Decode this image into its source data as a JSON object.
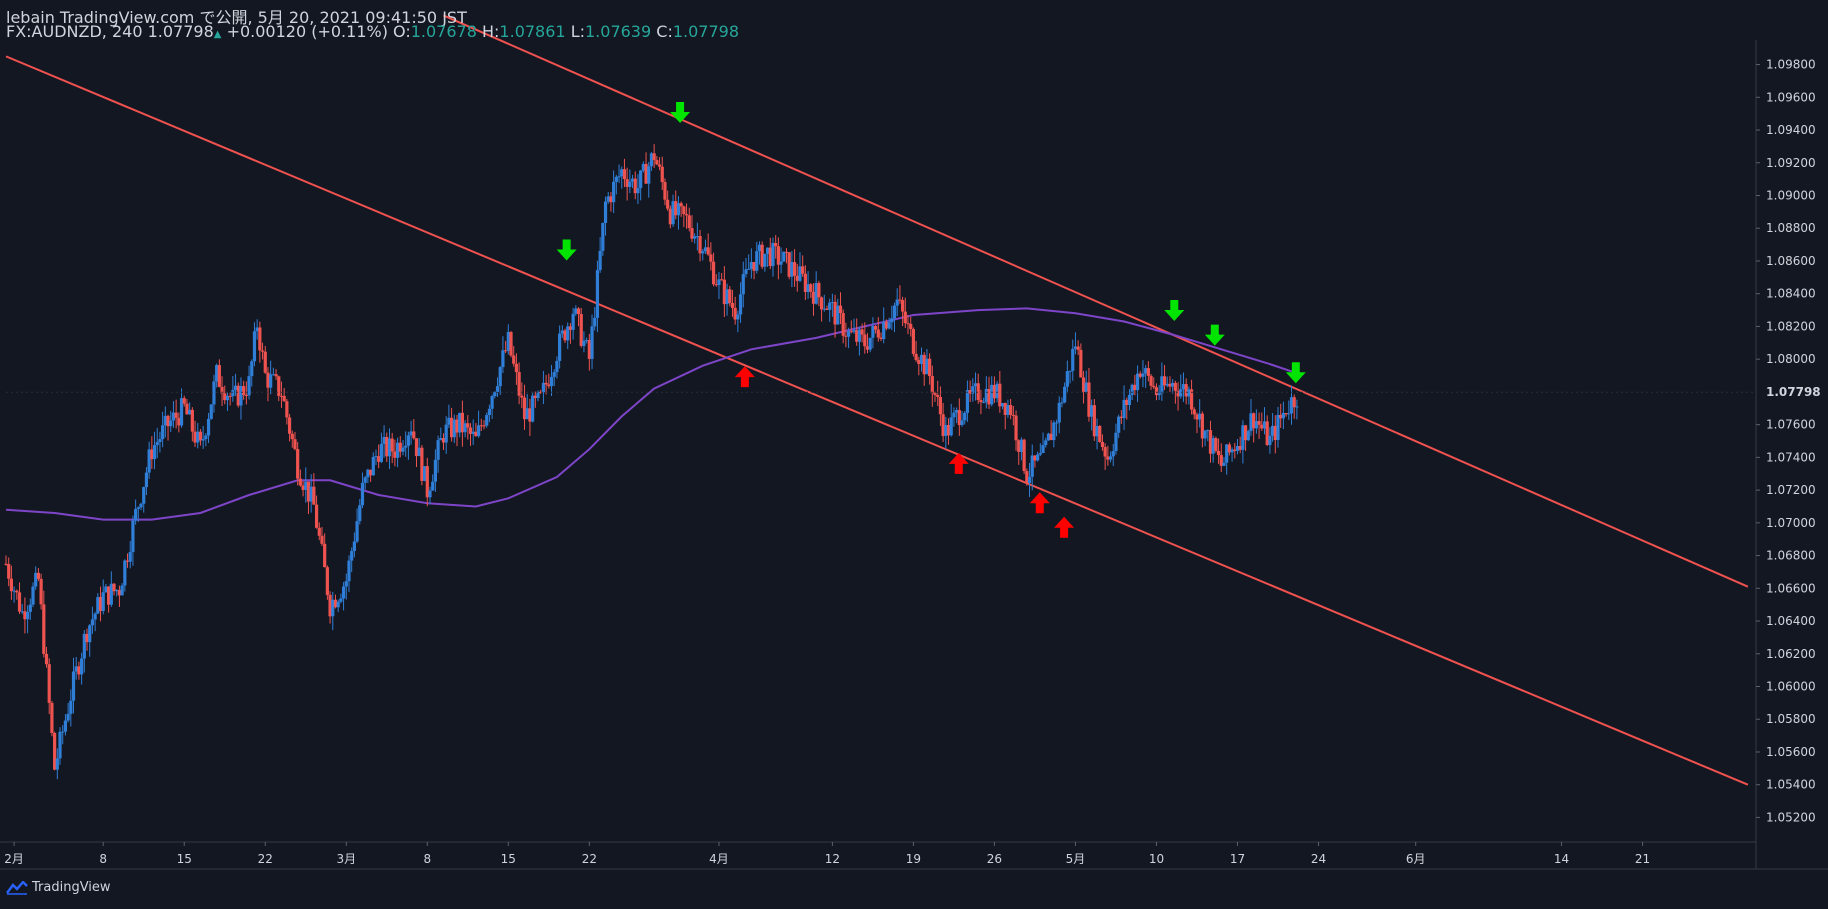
{
  "header": {
    "line1": "lebain TradingView.com で公開, 5月 20, 2021 09:41:50 JST",
    "symbol": "FX:AUDNZD, 240",
    "last": "1.07798",
    "change_arrow": "▲",
    "change": "+0.00120 (+0.11%)",
    "o_label": "O:",
    "o": "1.07678",
    "h_label": "H:",
    "h": "1.07861",
    "l_label": "L:",
    "l": "1.07639",
    "c_label": "C:",
    "c": "1.07798"
  },
  "brand": {
    "name": "TradingView",
    "icon": "tradingview-logo-icon"
  },
  "colors": {
    "background": "#131722",
    "up": "#2f7fd8",
    "down": "#ef5350",
    "trendline": "#f0524f",
    "ma": "#7e45c9",
    "green_marker": "#00e400",
    "red_marker": "#ff0000",
    "axis_text": "#d1d4dc"
  },
  "chart_data": {
    "type": "candlestick",
    "symbol": "FX:AUDNZD",
    "timeframe": "240",
    "ylim": [
      1.0505,
      1.0995
    ],
    "y_ticks": [
      "1.09800",
      "1.09600",
      "1.09400",
      "1.09200",
      "1.09000",
      "1.08800",
      "1.08600",
      "1.08400",
      "1.08200",
      "1.08000",
      "1.07798",
      "1.07600",
      "1.07400",
      "1.07200",
      "1.07000",
      "1.06800",
      "1.06600",
      "1.06400",
      "1.06200",
      "1.06000",
      "1.05800",
      "1.05600",
      "1.05400",
      "1.05200"
    ],
    "current_price": "1.07798",
    "x_axis": {
      "day_range": [
        0,
        108
      ],
      "ticks": [
        {
          "day": 0.5,
          "label": "2月"
        },
        {
          "day": 6,
          "label": "8"
        },
        {
          "day": 11,
          "label": "15"
        },
        {
          "day": 16,
          "label": "22"
        },
        {
          "day": 21,
          "label": "3月"
        },
        {
          "day": 26,
          "label": "8"
        },
        {
          "day": 31,
          "label": "15"
        },
        {
          "day": 36,
          "label": "22"
        },
        {
          "day": 44,
          "label": "4月"
        },
        {
          "day": 51,
          "label": "12"
        },
        {
          "day": 56,
          "label": "19"
        },
        {
          "day": 61,
          "label": "26"
        },
        {
          "day": 66,
          "label": "5月"
        },
        {
          "day": 71,
          "label": "10"
        },
        {
          "day": 76,
          "label": "17"
        },
        {
          "day": 81,
          "label": "24"
        },
        {
          "day": 87,
          "label": "6月"
        },
        {
          "day": 96,
          "label": "14"
        },
        {
          "day": 101,
          "label": "21"
        }
      ]
    },
    "price_path": [
      [
        0,
        1.0675
      ],
      [
        1,
        1.0645
      ],
      [
        2,
        1.0665
      ],
      [
        3,
        1.055
      ],
      [
        4,
        1.0595
      ],
      [
        5,
        1.0635
      ],
      [
        6,
        1.0655
      ],
      [
        7,
        1.066
      ],
      [
        8,
        1.0705
      ],
      [
        9,
        1.0745
      ],
      [
        10,
        1.076
      ],
      [
        11,
        1.077
      ],
      [
        12,
        1.0745
      ],
      [
        13,
        1.079
      ],
      [
        14,
        1.0775
      ],
      [
        15,
        1.0785
      ],
      [
        15.5,
        1.0822
      ],
      [
        16,
        1.079
      ],
      [
        17,
        1.078
      ],
      [
        18,
        1.0735
      ],
      [
        19,
        1.071
      ],
      [
        20,
        1.065
      ],
      [
        21,
        1.0665
      ],
      [
        22,
        1.072
      ],
      [
        23,
        1.0745
      ],
      [
        24,
        1.0745
      ],
      [
        25,
        1.076
      ],
      [
        26,
        1.072
      ],
      [
        27,
        1.0755
      ],
      [
        28,
        1.076
      ],
      [
        29,
        1.075
      ],
      [
        30,
        1.078
      ],
      [
        31,
        1.081
      ],
      [
        32,
        1.0765
      ],
      [
        33,
        1.0775
      ],
      [
        34,
        1.0805
      ],
      [
        35,
        1.083
      ],
      [
        36,
        1.08
      ],
      [
        37,
        1.0895
      ],
      [
        38,
        1.0915
      ],
      [
        39,
        1.0905
      ],
      [
        40,
        1.0925
      ],
      [
        41,
        1.089
      ],
      [
        42,
        1.0885
      ],
      [
        43,
        1.087
      ],
      [
        44,
        1.0845
      ],
      [
        45,
        1.083
      ],
      [
        46,
        1.086
      ],
      [
        47,
        1.0865
      ],
      [
        48,
        1.086
      ],
      [
        49,
        1.085
      ],
      [
        50,
        1.084
      ],
      [
        51,
        1.083
      ],
      [
        52,
        1.0815
      ],
      [
        53,
        1.081
      ],
      [
        54,
        1.082
      ],
      [
        55,
        1.0835
      ],
      [
        56,
        1.081
      ],
      [
        57,
        1.079
      ],
      [
        58,
        1.0755
      ],
      [
        59,
        1.077
      ],
      [
        60,
        1.078
      ],
      [
        61,
        1.078
      ],
      [
        62,
        1.077
      ],
      [
        63,
        1.073
      ],
      [
        64,
        1.074
      ],
      [
        65,
        1.077
      ],
      [
        66,
        1.081
      ],
      [
        67,
        1.0765
      ],
      [
        68,
        1.074
      ],
      [
        69,
        1.077
      ],
      [
        70,
        1.0795
      ],
      [
        71,
        1.078
      ],
      [
        72,
        1.0785
      ],
      [
        73,
        1.078
      ],
      [
        74,
        1.0755
      ],
      [
        75,
        1.0735
      ],
      [
        76,
        1.075
      ],
      [
        77,
        1.0765
      ],
      [
        78,
        1.075
      ],
      [
        79,
        1.077
      ],
      [
        79.8,
        1.078
      ]
    ],
    "moving_average": [
      [
        0,
        1.0708
      ],
      [
        3,
        1.0706
      ],
      [
        6,
        1.0702
      ],
      [
        9,
        1.0702
      ],
      [
        12,
        1.0706
      ],
      [
        15,
        1.0717
      ],
      [
        18,
        1.0726
      ],
      [
        20,
        1.0726
      ],
      [
        23,
        1.0717
      ],
      [
        26,
        1.0712
      ],
      [
        29,
        1.071
      ],
      [
        31,
        1.0715
      ],
      [
        34,
        1.0728
      ],
      [
        36,
        1.0745
      ],
      [
        38,
        1.0765
      ],
      [
        40,
        1.0782
      ],
      [
        43,
        1.0796
      ],
      [
        46,
        1.0806
      ],
      [
        50,
        1.0813
      ],
      [
        53,
        1.082
      ],
      [
        56,
        1.0827
      ],
      [
        60,
        1.083
      ],
      [
        63,
        1.0831
      ],
      [
        66,
        1.0828
      ],
      [
        69,
        1.0823
      ],
      [
        72,
        1.0815
      ],
      [
        75,
        1.0806
      ],
      [
        78,
        1.0797
      ],
      [
        79.5,
        1.0792
      ]
    ],
    "trendlines": [
      {
        "name": "channel-upper",
        "from": [
          27,
          1.101
        ],
        "to": [
          107.5,
          1.0661
        ]
      },
      {
        "name": "channel-lower",
        "from": [
          0,
          1.0985
        ],
        "to": [
          107.5,
          1.054
        ]
      }
    ],
    "markers": [
      {
        "type": "sell",
        "color": "green",
        "day": 41.6,
        "price": 1.0951
      },
      {
        "type": "sell",
        "color": "green",
        "day": 34.6,
        "price": 1.0867
      },
      {
        "type": "sell",
        "color": "green",
        "day": 72.1,
        "price": 1.083
      },
      {
        "type": "sell",
        "color": "green",
        "day": 74.6,
        "price": 1.0815
      },
      {
        "type": "sell",
        "color": "green",
        "day": 79.6,
        "price": 1.0792
      },
      {
        "type": "buy",
        "color": "red",
        "day": 45.6,
        "price": 1.0789
      },
      {
        "type": "buy",
        "color": "red",
        "day": 58.8,
        "price": 1.0736
      },
      {
        "type": "buy",
        "color": "red",
        "day": 63.8,
        "price": 1.0712
      },
      {
        "type": "buy",
        "color": "red",
        "day": 65.3,
        "price": 1.0697
      }
    ]
  }
}
